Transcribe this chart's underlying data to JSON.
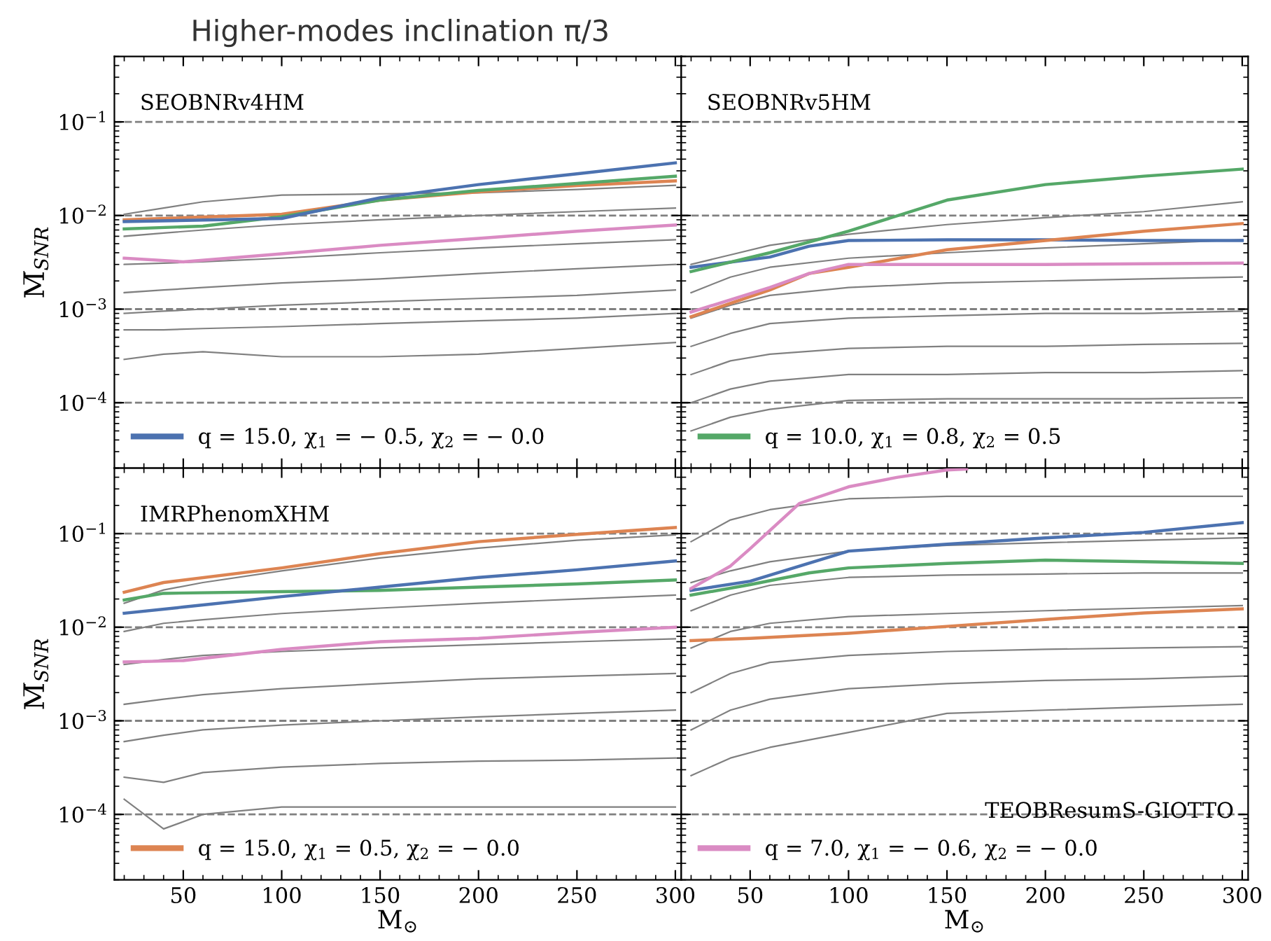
{
  "chart_data": [
    {
      "type": "line",
      "title": "Higher-modes inclination π/3",
      "ylabel": "M̅$_{SNR}$",
      "annotations": [
        "SEOBNRv4HM"
      ],
      "xlim": [
        15,
        303
      ],
      "ylim": [
        2e-05,
        0.5
      ],
      "xticks": [
        50,
        100,
        150,
        200,
        250,
        300
      ],
      "yticks": [
        {
          "value": 0.0001,
          "label": "10$^{−4}$"
        },
        {
          "value": 0.001,
          "label": "10$^{−3}$"
        },
        {
          "value": 0.01,
          "label": "10$^{−2}$"
        },
        {
          "value": 0.1,
          "label": "10$^{−1}$"
        }
      ],
      "log": "y",
      "tick_labels": "y",
      "legend": "bottom left",
      "grid": false,
      "ref_lines": [
        {
          "axis": "y",
          "value": 0.1,
          "color": "#808080",
          "line_style": "dashed"
        },
        {
          "axis": "y",
          "value": 0.01,
          "color": "#808080",
          "line_style": "dashed"
        },
        {
          "axis": "y",
          "value": 0.001,
          "color": "#808080",
          "line_style": "dashed"
        },
        {
          "axis": "y",
          "value": 0.0001,
          "color": "#808080",
          "line_style": "dashed"
        }
      ],
      "series": [
        {
          "color": "#808080",
          "x": [
            20,
            40,
            60,
            100,
            150,
            200,
            250,
            300
          ],
          "values": [
            0.0103,
            0.012,
            0.014,
            0.0165,
            0.017,
            0.0175,
            0.019,
            0.021
          ]
        },
        {
          "color": "#808080",
          "x": [
            20,
            40,
            60,
            100,
            150,
            200,
            250,
            300
          ],
          "values": [
            0.006,
            0.0065,
            0.007,
            0.008,
            0.009,
            0.01,
            0.011,
            0.012
          ]
        },
        {
          "color": "#808080",
          "x": [
            20,
            40,
            60,
            100,
            150,
            200,
            250,
            300
          ],
          "values": [
            0.003,
            0.0031,
            0.0032,
            0.0035,
            0.004,
            0.0045,
            0.005,
            0.0055
          ]
        },
        {
          "color": "#808080",
          "x": [
            20,
            40,
            60,
            100,
            150,
            200,
            250,
            300
          ],
          "values": [
            0.0015,
            0.0016,
            0.0017,
            0.0019,
            0.0021,
            0.0024,
            0.0027,
            0.003
          ]
        },
        {
          "color": "#808080",
          "x": [
            20,
            40,
            60,
            100,
            150,
            200,
            250,
            300
          ],
          "values": [
            0.0009,
            0.00095,
            0.001,
            0.0011,
            0.0012,
            0.0013,
            0.0014,
            0.0016
          ]
        },
        {
          "color": "#808080",
          "x": [
            20,
            40,
            60,
            100,
            150,
            200,
            250,
            300
          ],
          "values": [
            0.0006,
            0.0006,
            0.00062,
            0.00065,
            0.0007,
            0.00075,
            0.0008,
            0.0009
          ]
        },
        {
          "color": "#808080",
          "x": [
            20,
            40,
            60,
            100,
            150,
            200,
            250,
            300
          ],
          "values": [
            0.00029,
            0.00033,
            0.00035,
            0.00031,
            0.00031,
            0.00033,
            0.00038,
            0.00044
          ]
        },
        {
          "color": "#dd8452",
          "x": [
            20,
            100,
            150,
            200,
            250,
            300
          ],
          "values": [
            0.009,
            0.0103,
            0.0146,
            0.0179,
            0.0209,
            0.0234
          ]
        },
        {
          "color": "#55a868",
          "x": [
            20,
            60,
            100,
            150,
            200,
            250,
            300
          ],
          "values": [
            0.0072,
            0.0077,
            0.0097,
            0.0146,
            0.0185,
            0.022,
            0.0263
          ]
        },
        {
          "color": "#da8bc3",
          "x": [
            20,
            50,
            100,
            150,
            200,
            250,
            300
          ],
          "values": [
            0.0035,
            0.0032,
            0.0039,
            0.0048,
            0.0057,
            0.0068,
            0.0079
          ]
        },
        {
          "name": "q = 15.0, χ$_{1}$ = − 0.5, χ$_{2}$ = − 0.0",
          "color": "#4c72b0",
          "x": [
            20,
            100,
            150,
            200,
            250,
            300
          ],
          "values": [
            0.0086,
            0.0093,
            0.0155,
            0.0214,
            0.0279,
            0.0365
          ]
        }
      ]
    },
    {
      "type": "line",
      "annotations": [
        "SEOBNRv5HM"
      ],
      "xlim": [
        15,
        303
      ],
      "ylim": [
        2e-05,
        0.5
      ],
      "xticks": [
        50,
        100,
        150,
        200,
        250,
        300
      ],
      "yticks": [
        0.0001,
        0.001,
        0.01,
        0.1
      ],
      "log": "y",
      "tick_labels": false,
      "legend": "bottom left",
      "grid": false,
      "ref_lines": [
        {
          "axis": "y",
          "value": 0.1,
          "color": "#808080",
          "line_style": "dashed"
        },
        {
          "axis": "y",
          "value": 0.01,
          "color": "#808080",
          "line_style": "dashed"
        },
        {
          "axis": "y",
          "value": 0.001,
          "color": "#808080",
          "line_style": "dashed"
        },
        {
          "axis": "y",
          "value": 0.0001,
          "color": "#808080",
          "line_style": "dashed"
        }
      ],
      "series": [
        {
          "color": "#808080",
          "x": [
            20,
            40,
            60,
            100,
            150,
            200,
            250,
            300
          ],
          "values": [
            0.003,
            0.0038,
            0.0048,
            0.0063,
            0.008,
            0.0095,
            0.011,
            0.014
          ]
        },
        {
          "color": "#808080",
          "x": [
            20,
            40,
            60,
            100,
            150,
            200,
            250,
            300
          ],
          "values": [
            0.0015,
            0.0022,
            0.0028,
            0.0035,
            0.004,
            0.0045,
            0.005,
            0.0055
          ]
        },
        {
          "color": "#808080",
          "x": [
            20,
            40,
            60,
            100,
            150,
            200,
            250,
            300
          ],
          "values": [
            0.0008,
            0.0011,
            0.0014,
            0.0017,
            0.0019,
            0.002,
            0.0021,
            0.0022
          ]
        },
        {
          "color": "#808080",
          "x": [
            20,
            40,
            60,
            100,
            150,
            200,
            250,
            300
          ],
          "values": [
            0.0004,
            0.00055,
            0.0007,
            0.0008,
            0.00085,
            0.0009,
            0.0009,
            0.00095
          ]
        },
        {
          "color": "#808080",
          "x": [
            20,
            40,
            60,
            100,
            150,
            200,
            250,
            300
          ],
          "values": [
            0.0002,
            0.00028,
            0.00033,
            0.00038,
            0.0004,
            0.0004,
            0.00042,
            0.00043
          ]
        },
        {
          "color": "#808080",
          "x": [
            20,
            40,
            60,
            100,
            150,
            200,
            250,
            300
          ],
          "values": [
            0.0001,
            0.00014,
            0.00017,
            0.0002,
            0.0002,
            0.00021,
            0.00021,
            0.00022
          ]
        },
        {
          "color": "#808080",
          "x": [
            20,
            40,
            60,
            100,
            150,
            200,
            250,
            300
          ],
          "values": [
            5e-05,
            7e-05,
            8.5e-05,
            0.000106,
            0.00011,
            0.00011,
            0.00011,
            0.000113
          ]
        },
        {
          "color": "#4c72b0",
          "x": [
            20,
            60,
            80,
            100,
            150,
            200,
            250,
            300
          ],
          "values": [
            0.0028,
            0.0036,
            0.0047,
            0.0054,
            0.0055,
            0.0055,
            0.0054,
            0.0054
          ]
        },
        {
          "color": "#dd8452",
          "x": [
            20,
            60,
            80,
            100,
            150,
            200,
            250,
            300
          ],
          "values": [
            0.00083,
            0.0016,
            0.0024,
            0.0028,
            0.0043,
            0.0054,
            0.0068,
            0.0082
          ]
        },
        {
          "color": "#da8bc3",
          "x": [
            20,
            60,
            80,
            100,
            150,
            200,
            300
          ],
          "values": [
            0.00093,
            0.0017,
            0.0024,
            0.003,
            0.003,
            0.003,
            0.0031
          ]
        },
        {
          "name": "q = 10.0, χ$_{1}$ = 0.8, χ$_{2}$ = 0.5",
          "color": "#55a868",
          "x": [
            20,
            60,
            100,
            150,
            200,
            250,
            300
          ],
          "values": [
            0.00252,
            0.004,
            0.0068,
            0.0146,
            0.0214,
            0.0263,
            0.0313
          ]
        }
      ]
    },
    {
      "type": "line",
      "ylabel": "M̅$_{SNR}$",
      "xlabel": "M$_{⊙}$",
      "annotations": [
        "IMRPhenomXHM"
      ],
      "xlim": [
        15,
        303
      ],
      "ylim": [
        2e-05,
        0.5
      ],
      "xticks": [
        50,
        100,
        150,
        200,
        250,
        300
      ],
      "yticks": [
        {
          "value": 0.0001,
          "label": "10$^{−4}$"
        },
        {
          "value": 0.001,
          "label": "10$^{−3}$"
        },
        {
          "value": 0.01,
          "label": "10$^{−2}$"
        },
        {
          "value": 0.1,
          "label": "10$^{−1}$"
        }
      ],
      "log": "y",
      "legend": "bottom left",
      "grid": false,
      "ref_lines": [
        {
          "axis": "y",
          "value": 0.1,
          "color": "#808080",
          "line_style": "dashed"
        },
        {
          "axis": "y",
          "value": 0.01,
          "color": "#808080",
          "line_style": "dashed"
        },
        {
          "axis": "y",
          "value": 0.001,
          "color": "#808080",
          "line_style": "dashed"
        },
        {
          "axis": "y",
          "value": 0.0001,
          "color": "#808080",
          "line_style": "dashed"
        }
      ],
      "series": [
        {
          "color": "#808080",
          "x": [
            20,
            40,
            60,
            100,
            150,
            200,
            250,
            300
          ],
          "values": [
            0.018,
            0.025,
            0.03,
            0.04,
            0.055,
            0.07,
            0.085,
            0.097
          ]
        },
        {
          "color": "#808080",
          "x": [
            20,
            40,
            60,
            100,
            150,
            200,
            250,
            300
          ],
          "values": [
            0.009,
            0.011,
            0.012,
            0.014,
            0.016,
            0.018,
            0.02,
            0.022
          ]
        },
        {
          "color": "#808080",
          "x": [
            20,
            40,
            60,
            100,
            150,
            200,
            250,
            300
          ],
          "values": [
            0.004,
            0.0045,
            0.005,
            0.0055,
            0.006,
            0.0065,
            0.007,
            0.0075
          ]
        },
        {
          "color": "#808080",
          "x": [
            20,
            40,
            60,
            100,
            150,
            200,
            250,
            300
          ],
          "values": [
            0.0015,
            0.0017,
            0.0019,
            0.0022,
            0.0025,
            0.0028,
            0.003,
            0.0032
          ]
        },
        {
          "color": "#808080",
          "x": [
            20,
            40,
            60,
            100,
            150,
            200,
            250,
            300
          ],
          "values": [
            0.0006,
            0.0007,
            0.0008,
            0.0009,
            0.001,
            0.0011,
            0.0012,
            0.0013
          ]
        },
        {
          "color": "#808080",
          "x": [
            20,
            40,
            60,
            100,
            150,
            200,
            250,
            300
          ],
          "values": [
            0.00025,
            0.00022,
            0.00028,
            0.00032,
            0.00035,
            0.00037,
            0.00038,
            0.0004
          ]
        },
        {
          "color": "#808080",
          "x": [
            20,
            40,
            60,
            100,
            150,
            200,
            250,
            300
          ],
          "values": [
            0.000145,
            7e-05,
            0.0001,
            0.00012,
            0.00012,
            0.00012,
            0.00012,
            0.00012
          ]
        },
        {
          "color": "#55a868",
          "x": [
            20,
            40,
            100,
            150,
            200,
            250,
            300
          ],
          "values": [
            0.0195,
            0.023,
            0.024,
            0.0247,
            0.0268,
            0.029,
            0.032
          ]
        },
        {
          "color": "#4c72b0",
          "x": [
            20,
            50,
            100,
            150,
            200,
            250,
            300
          ],
          "values": [
            0.0141,
            0.0164,
            0.0212,
            0.0268,
            0.034,
            0.041,
            0.051
          ]
        },
        {
          "color": "#da8bc3",
          "x": [
            20,
            50,
            100,
            150,
            200,
            250,
            300
          ],
          "values": [
            0.00425,
            0.0044,
            0.0058,
            0.007,
            0.0076,
            0.0088,
            0.01
          ]
        },
        {
          "name": "q = 15.0, χ$_{1}$ = 0.5, χ$_{2}$ = − 0.0",
          "color": "#dd8452",
          "x": [
            20,
            40,
            100,
            150,
            200,
            250,
            300
          ],
          "values": [
            0.0236,
            0.03,
            0.043,
            0.061,
            0.082,
            0.098,
            0.116
          ]
        }
      ]
    },
    {
      "type": "line",
      "xlabel": "M$_{⊙}$",
      "annotations": [
        "TEOBResumS-GIOTTO"
      ],
      "xlim": [
        15,
        303
      ],
      "ylim": [
        2e-05,
        0.5
      ],
      "xticks": [
        50,
        100,
        150,
        200,
        250,
        300
      ],
      "yticks": [
        0.0001,
        0.001,
        0.01,
        0.1
      ],
      "log": "y",
      "tick_labels": "x",
      "legend": "bottom left",
      "grid": false,
      "ref_lines": [
        {
          "axis": "y",
          "value": 0.1,
          "color": "#808080",
          "line_style": "dashed"
        },
        {
          "axis": "y",
          "value": 0.01,
          "color": "#808080",
          "line_style": "dashed"
        },
        {
          "axis": "y",
          "value": 0.001,
          "color": "#808080",
          "line_style": "dashed"
        },
        {
          "axis": "y",
          "value": 0.0001,
          "color": "#808080",
          "line_style": "dashed"
        }
      ],
      "series": [
        {
          "color": "#808080",
          "x": [
            20,
            40,
            60,
            100,
            150,
            200,
            250,
            300
          ],
          "values": [
            0.082,
            0.14,
            0.18,
            0.235,
            0.25,
            0.25,
            0.25,
            0.25
          ]
        },
        {
          "color": "#808080",
          "x": [
            20,
            40,
            60,
            100,
            150,
            200,
            250,
            300
          ],
          "values": [
            0.03,
            0.04,
            0.05,
            0.065,
            0.075,
            0.08,
            0.085,
            0.09
          ]
        },
        {
          "color": "#808080",
          "x": [
            20,
            40,
            60,
            100,
            150,
            200,
            250,
            300
          ],
          "values": [
            0.015,
            0.022,
            0.028,
            0.034,
            0.036,
            0.037,
            0.038,
            0.038
          ]
        },
        {
          "color": "#808080",
          "x": [
            20,
            40,
            60,
            100,
            150,
            200,
            250,
            300
          ],
          "values": [
            0.006,
            0.009,
            0.011,
            0.013,
            0.014,
            0.015,
            0.016,
            0.017
          ]
        },
        {
          "color": "#808080",
          "x": [
            20,
            40,
            60,
            100,
            150,
            200,
            250,
            300
          ],
          "values": [
            0.002,
            0.0032,
            0.0042,
            0.005,
            0.0055,
            0.0058,
            0.006,
            0.0062
          ]
        },
        {
          "color": "#808080",
          "x": [
            20,
            40,
            60,
            100,
            150,
            200,
            250,
            300
          ],
          "values": [
            0.0008,
            0.0013,
            0.0017,
            0.0022,
            0.0025,
            0.0027,
            0.0028,
            0.003
          ]
        },
        {
          "color": "#808080",
          "x": [
            20,
            40,
            60,
            100,
            150,
            200,
            250,
            300
          ],
          "values": [
            0.00026,
            0.0004,
            0.00052,
            0.00075,
            0.0012,
            0.0013,
            0.0014,
            0.0015
          ]
        },
        {
          "color": "#4c72b0",
          "x": [
            20,
            50,
            100,
            150,
            200,
            250,
            300
          ],
          "values": [
            0.0247,
            0.031,
            0.065,
            0.077,
            0.09,
            0.103,
            0.131
          ]
        },
        {
          "color": "#55a868",
          "x": [
            20,
            50,
            80,
            100,
            150,
            200,
            250,
            300
          ],
          "values": [
            0.022,
            0.0285,
            0.038,
            0.043,
            0.048,
            0.052,
            0.05,
            0.048
          ]
        },
        {
          "color": "#dd8452",
          "x": [
            20,
            50,
            100,
            150,
            200,
            250,
            300
          ],
          "values": [
            0.0072,
            0.0076,
            0.0086,
            0.0102,
            0.0121,
            0.0142,
            0.0157
          ]
        },
        {
          "name": "q = 7.0, χ$_{1}$ = − 0.6, χ$_{2}$ = − 0.0",
          "color": "#da8bc3",
          "x": [
            20,
            40,
            50,
            75,
            100,
            125,
            150,
            160
          ],
          "values": [
            0.0259,
            0.045,
            0.069,
            0.21,
            0.316,
            0.4,
            0.478,
            0.49
          ]
        }
      ]
    }
  ]
}
